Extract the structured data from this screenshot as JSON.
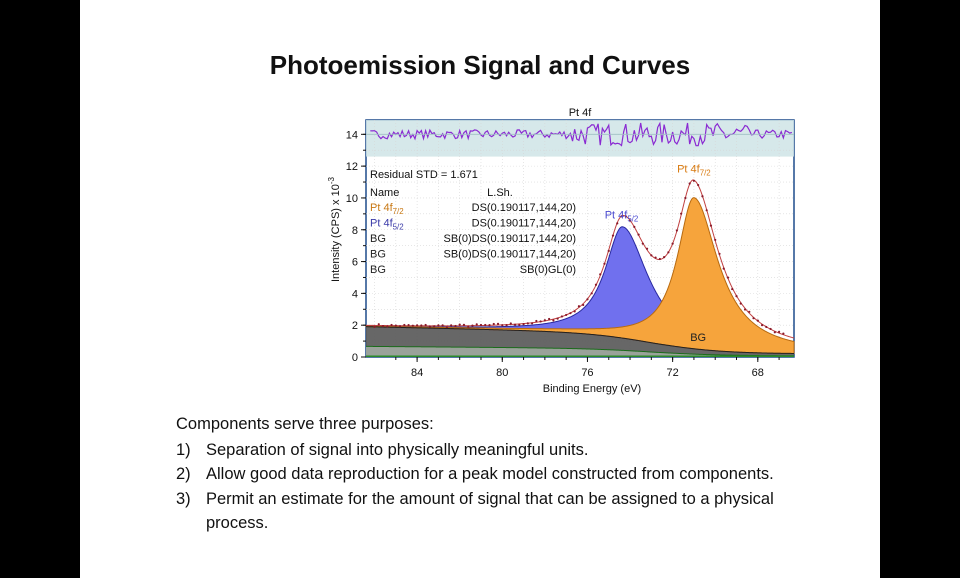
{
  "slide": {
    "title": "Photoemission Signal and Curves",
    "intro": "Components serve three purposes:",
    "items": [
      {
        "num": "1)",
        "text": "Separation of signal into physically meaningful units."
      },
      {
        "num": "2)",
        "text": "Allow good data reproduction for a peak model constructed from components."
      },
      {
        "num": "3)",
        "text": "Permit an estimate for the amount of signal that can be assigned to a physical process."
      }
    ]
  },
  "chart_data": {
    "type": "line",
    "title": "Pt 4f",
    "xlabel": "Binding Energy (eV)",
    "ylabel": "Intensity (CPS) x 10",
    "ylabel_exponent": "-3",
    "x_reversed": true,
    "xlim": [
      86.4,
      66.3
    ],
    "ylim": [
      0,
      14.9
    ],
    "x_ticks": [
      84,
      80,
      76,
      72,
      68
    ],
    "y_ticks": [
      0,
      2,
      4,
      6,
      8,
      10,
      12,
      14
    ],
    "residual_label": "Residual STD = 1.671",
    "residual_offset": 14,
    "table": {
      "headers": [
        "Name",
        "L.Sh."
      ],
      "rows": [
        {
          "name": "Pt 4f",
          "sub": "7/2",
          "lsh": "DS(0.190117,144,20)",
          "color": "#c87814"
        },
        {
          "name": "Pt 4f",
          "sub": "5/2",
          "lsh": "DS(0.190117,144,20)",
          "color": "#3a3aa8"
        },
        {
          "name": "BG",
          "sub": "",
          "lsh": "SB(0)DS(0.190117,144,20)",
          "color": "#222222"
        },
        {
          "name": "BG",
          "sub": "",
          "lsh": "SB(0)DS(0.190117,144,20)",
          "color": "#222222"
        },
        {
          "name": "BG",
          "sub": "",
          "lsh": "SB(0)GL(0)",
          "color": "#222222"
        }
      ]
    },
    "peak_labels": [
      {
        "name": "Pt 4f",
        "sub": "7/2",
        "x": 71.0,
        "y": 11.6,
        "color": "#d87a10"
      },
      {
        "name": "Pt 4f",
        "sub": "5/2",
        "x": 74.4,
        "y": 8.7,
        "color": "#4a4ad0"
      }
    ],
    "bg_label": {
      "text": "BG",
      "x": 70.8,
      "y": 1.0
    },
    "components": [
      {
        "name": "Pt 4f5/2",
        "center": 74.35,
        "height": 7.0,
        "width": 1.0,
        "asym": 0.45,
        "fill": "#7070ee",
        "stroke": "#2828a0"
      },
      {
        "name": "Pt 4f7/2",
        "center": 71.0,
        "height": 9.5,
        "width": 0.95,
        "asym": 0.45,
        "fill": "#f6a43c",
        "stroke": "#b86a10"
      }
    ],
    "background": {
      "start": 1.5,
      "end": 0.2,
      "start_x": 85.5,
      "step_center": 72.8,
      "step_width": 1.6
    },
    "colors": {
      "residual_band": "#cfe4e6",
      "residual_line": "#8a2ad2",
      "data_points": "#8a1a2a",
      "envelope": "#c04040",
      "bg_fill": "#5a5a5a",
      "bg_lower_fill": "#a0a8a0",
      "baseline": "#2a8a2a",
      "frame": "#1e4c8c"
    }
  }
}
